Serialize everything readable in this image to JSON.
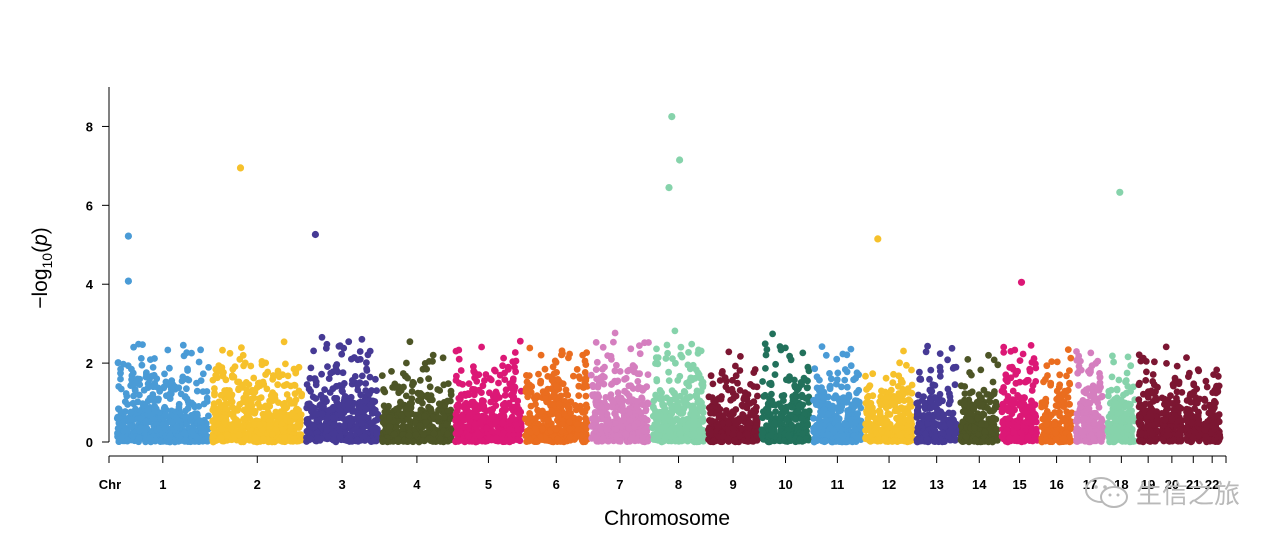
{
  "chart_data": {
    "type": "scatter",
    "subtype": "manhattan",
    "xlabel": "Chromosome",
    "ylabel": "-log10(p)",
    "ylabel_parts": {
      "prefix": "−log",
      "sub": "10",
      "open": "(",
      "var": "p",
      "close": ")"
    },
    "x_prefix_label": "Chr",
    "ylim": [
      0,
      9
    ],
    "y_ticks": [
      0,
      2,
      4,
      6,
      8
    ],
    "grid": false,
    "legend": "none",
    "chromosomes": [
      {
        "label": "1",
        "len": 248,
        "color": "#4a9bd6",
        "base": 1.45,
        "hits": [
          {
            "pos": 0.14,
            "y": 5.22
          },
          {
            "pos": 0.14,
            "y": 4.08
          }
        ]
      },
      {
        "label": "2",
        "len": 242,
        "color": "#f6c12b",
        "base": 1.6,
        "hits": [
          {
            "pos": 0.32,
            "y": 6.95
          }
        ]
      },
      {
        "label": "3",
        "len": 198,
        "color": "#463a95",
        "base": 1.6,
        "hits": [
          {
            "pos": 0.15,
            "y": 5.26
          }
        ]
      },
      {
        "label": "4",
        "len": 190,
        "color": "#4d5526",
        "base": 1.45,
        "hits": []
      },
      {
        "label": "5",
        "len": 181,
        "color": "#dc1876",
        "base": 1.55,
        "hits": []
      },
      {
        "label": "6",
        "len": 171,
        "color": "#ea6d1f",
        "base": 1.5,
        "hits": []
      },
      {
        "label": "7",
        "len": 159,
        "color": "#d57fbf",
        "base": 1.7,
        "hits": []
      },
      {
        "label": "8",
        "len": 145,
        "color": "#86d3ab",
        "base": 1.75,
        "hits": [
          {
            "pos": 0.38,
            "y": 8.25
          },
          {
            "pos": 0.52,
            "y": 7.15
          },
          {
            "pos": 0.33,
            "y": 6.45
          }
        ]
      },
      {
        "label": "9",
        "len": 138,
        "color": "#7c1632",
        "base": 1.4,
        "hits": []
      },
      {
        "label": "10",
        "len": 134,
        "color": "#22715b",
        "base": 1.7,
        "hits": []
      },
      {
        "label": "11",
        "len": 135,
        "color": "#4a9bd6",
        "base": 1.5,
        "hits": []
      },
      {
        "label": "12",
        "len": 133,
        "color": "#f6c12b",
        "base": 1.3,
        "hits": [
          {
            "pos": 0.28,
            "y": 5.15
          }
        ]
      },
      {
        "label": "13",
        "len": 114,
        "color": "#463a95",
        "base": 1.35,
        "hits": []
      },
      {
        "label": "14",
        "len": 107,
        "color": "#4d5526",
        "base": 1.2,
        "hits": []
      },
      {
        "label": "15",
        "len": 102,
        "color": "#dc1876",
        "base": 1.55,
        "hits": [
          {
            "pos": 0.55,
            "y": 4.05
          }
        ]
      },
      {
        "label": "16",
        "len": 90,
        "color": "#ea6d1f",
        "base": 1.3,
        "hits": []
      },
      {
        "label": "17",
        "len": 83,
        "color": "#d57fbf",
        "base": 1.6,
        "hits": []
      },
      {
        "label": "18",
        "len": 80,
        "color": "#86d3ab",
        "base": 1.4,
        "hits": [
          {
            "pos": 0.45,
            "y": 6.33
          }
        ]
      },
      {
        "label": "19",
        "len": 59,
        "color": "#7c1632",
        "base": 1.5,
        "hits": []
      },
      {
        "label": "20",
        "len": 64,
        "color": "#7c1632",
        "base": 1.4,
        "hits": []
      },
      {
        "label": "21",
        "len": 47,
        "color": "#7c1632",
        "base": 1.2,
        "hits": []
      },
      {
        "label": "22",
        "len": 51,
        "color": "#7c1632",
        "base": 1.1,
        "hits": []
      }
    ]
  },
  "watermark": {
    "text": "生信之旅",
    "icon": "wechat-icon"
  }
}
